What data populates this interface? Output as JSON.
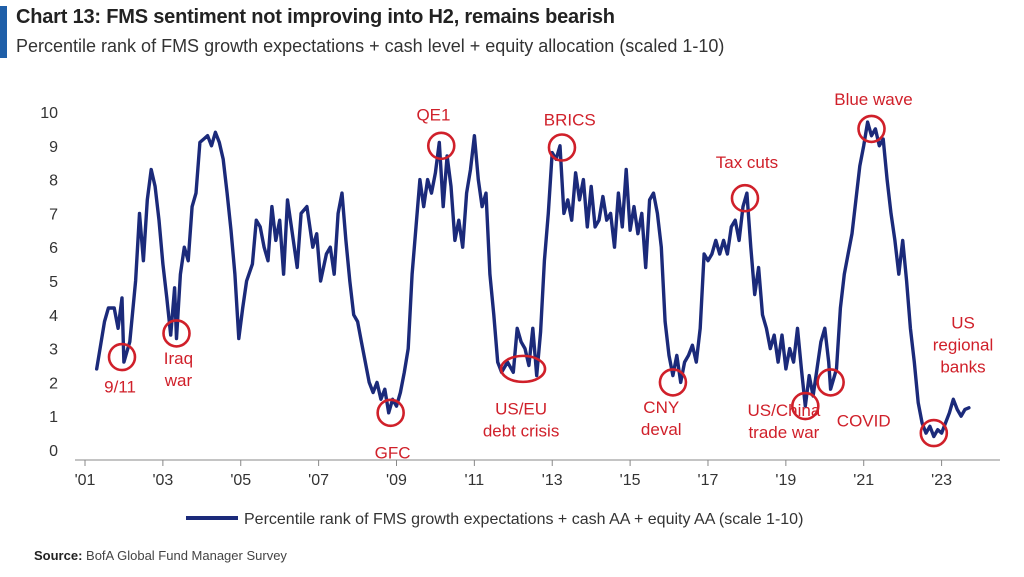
{
  "header": {
    "title": "Chart 13: FMS sentiment not improving into H2, remains bearish",
    "subtitle": "Percentile rank of FMS growth expectations + cash level + equity allocation (scaled 1-10)"
  },
  "source": {
    "label": "Source:",
    "text": "BofA Global Fund Manager Survey"
  },
  "colors": {
    "line": "#1b2a7a",
    "annotation": "#d0202a",
    "accent": "#1f5fa8"
  },
  "chart_data": {
    "type": "line",
    "xlim": [
      2001.0,
      2024.5
    ],
    "ylim": [
      0,
      10
    ],
    "y_ticks": [
      0,
      1,
      2,
      3,
      4,
      5,
      6,
      7,
      8,
      9,
      10
    ],
    "x_ticks": [
      {
        "value": 2001,
        "label": "'01"
      },
      {
        "value": 2003,
        "label": "'03"
      },
      {
        "value": 2005,
        "label": "'05"
      },
      {
        "value": 2007,
        "label": "'07"
      },
      {
        "value": 2009,
        "label": "'09"
      },
      {
        "value": 2011,
        "label": "'11"
      },
      {
        "value": 2013,
        "label": "'13"
      },
      {
        "value": 2015,
        "label": "'15"
      },
      {
        "value": 2017,
        "label": "'17"
      },
      {
        "value": 2019,
        "label": "'19"
      },
      {
        "value": 2021,
        "label": "'21"
      },
      {
        "value": 2023,
        "label": "'23"
      }
    ],
    "legend": "bottom-center",
    "series": [
      {
        "name": "Percentile rank of FMS growth expectations + cash AA + equity AA (scale 1-10)",
        "points": [
          [
            2001.3,
            2.4
          ],
          [
            2001.5,
            3.8
          ],
          [
            2001.6,
            4.2
          ],
          [
            2001.75,
            4.2
          ],
          [
            2001.85,
            3.6
          ],
          [
            2001.95,
            4.5
          ],
          [
            2002.0,
            2.6
          ],
          [
            2002.15,
            3.2
          ],
          [
            2002.3,
            5.0
          ],
          [
            2002.4,
            7.0
          ],
          [
            2002.5,
            5.6
          ],
          [
            2002.6,
            7.4
          ],
          [
            2002.7,
            8.3
          ],
          [
            2002.8,
            7.8
          ],
          [
            2002.9,
            6.8
          ],
          [
            2003.0,
            5.5
          ],
          [
            2003.1,
            4.5
          ],
          [
            2003.2,
            3.4
          ],
          [
            2003.3,
            4.8
          ],
          [
            2003.35,
            3.3
          ],
          [
            2003.45,
            5.2
          ],
          [
            2003.55,
            6.0
          ],
          [
            2003.65,
            5.6
          ],
          [
            2003.75,
            7.2
          ],
          [
            2003.85,
            7.6
          ],
          [
            2003.95,
            9.1
          ],
          [
            2004.05,
            9.2
          ],
          [
            2004.15,
            9.3
          ],
          [
            2004.25,
            9.0
          ],
          [
            2004.35,
            9.4
          ],
          [
            2004.45,
            9.1
          ],
          [
            2004.55,
            8.6
          ],
          [
            2004.65,
            7.6
          ],
          [
            2004.75,
            6.5
          ],
          [
            2004.85,
            5.2
          ],
          [
            2004.95,
            3.3
          ],
          [
            2005.05,
            4.2
          ],
          [
            2005.15,
            5.0
          ],
          [
            2005.3,
            5.5
          ],
          [
            2005.4,
            6.8
          ],
          [
            2005.5,
            6.6
          ],
          [
            2005.6,
            6.0
          ],
          [
            2005.7,
            5.6
          ],
          [
            2005.8,
            7.2
          ],
          [
            2005.9,
            6.2
          ],
          [
            2006.0,
            6.8
          ],
          [
            2006.1,
            5.2
          ],
          [
            2006.2,
            7.4
          ],
          [
            2006.3,
            6.6
          ],
          [
            2006.45,
            5.4
          ],
          [
            2006.55,
            7.0
          ],
          [
            2006.7,
            7.2
          ],
          [
            2006.85,
            6.0
          ],
          [
            2006.95,
            6.4
          ],
          [
            2007.05,
            5.0
          ],
          [
            2007.2,
            5.8
          ],
          [
            2007.3,
            6.0
          ],
          [
            2007.4,
            5.2
          ],
          [
            2007.5,
            7.0
          ],
          [
            2007.6,
            7.6
          ],
          [
            2007.7,
            6.2
          ],
          [
            2007.8,
            5.0
          ],
          [
            2007.9,
            4.0
          ],
          [
            2008.0,
            3.8
          ],
          [
            2008.1,
            3.2
          ],
          [
            2008.2,
            2.6
          ],
          [
            2008.3,
            2.0
          ],
          [
            2008.4,
            1.7
          ],
          [
            2008.5,
            2.0
          ],
          [
            2008.6,
            1.5
          ],
          [
            2008.7,
            1.8
          ],
          [
            2008.8,
            1.1
          ],
          [
            2008.9,
            1.5
          ],
          [
            2009.0,
            1.3
          ],
          [
            2009.1,
            1.7
          ],
          [
            2009.2,
            2.3
          ],
          [
            2009.3,
            3.0
          ],
          [
            2009.4,
            5.2
          ],
          [
            2009.5,
            6.6
          ],
          [
            2009.6,
            8.0
          ],
          [
            2009.7,
            7.2
          ],
          [
            2009.8,
            8.0
          ],
          [
            2009.9,
            7.6
          ],
          [
            2010.0,
            8.2
          ],
          [
            2010.1,
            9.1
          ],
          [
            2010.2,
            7.2
          ],
          [
            2010.3,
            8.7
          ],
          [
            2010.4,
            7.8
          ],
          [
            2010.5,
            6.2
          ],
          [
            2010.6,
            6.8
          ],
          [
            2010.7,
            6.0
          ],
          [
            2010.8,
            7.6
          ],
          [
            2010.9,
            8.3
          ],
          [
            2011.0,
            9.3
          ],
          [
            2011.1,
            8.0
          ],
          [
            2011.2,
            7.2
          ],
          [
            2011.3,
            7.6
          ],
          [
            2011.4,
            5.2
          ],
          [
            2011.5,
            4.0
          ],
          [
            2011.6,
            2.6
          ],
          [
            2011.7,
            2.3
          ],
          [
            2011.85,
            2.6
          ],
          [
            2012.0,
            2.3
          ],
          [
            2012.1,
            3.6
          ],
          [
            2012.2,
            3.2
          ],
          [
            2012.3,
            3.0
          ],
          [
            2012.4,
            2.5
          ],
          [
            2012.5,
            3.6
          ],
          [
            2012.6,
            2.2
          ],
          [
            2012.7,
            3.5
          ],
          [
            2012.8,
            5.6
          ],
          [
            2012.9,
            7.0
          ],
          [
            2013.0,
            8.8
          ],
          [
            2013.1,
            8.6
          ],
          [
            2013.2,
            9.0
          ],
          [
            2013.3,
            7.0
          ],
          [
            2013.4,
            7.4
          ],
          [
            2013.5,
            6.8
          ],
          [
            2013.6,
            8.2
          ],
          [
            2013.7,
            7.4
          ],
          [
            2013.8,
            8.0
          ],
          [
            2013.9,
            6.6
          ],
          [
            2014.0,
            7.8
          ],
          [
            2014.1,
            6.6
          ],
          [
            2014.2,
            6.8
          ],
          [
            2014.3,
            7.5
          ],
          [
            2014.4,
            6.8
          ],
          [
            2014.5,
            7.0
          ],
          [
            2014.6,
            6.0
          ],
          [
            2014.7,
            7.6
          ],
          [
            2014.8,
            6.6
          ],
          [
            2014.9,
            8.3
          ],
          [
            2015.0,
            6.5
          ],
          [
            2015.1,
            7.2
          ],
          [
            2015.2,
            6.4
          ],
          [
            2015.3,
            7.0
          ],
          [
            2015.4,
            5.4
          ],
          [
            2015.5,
            7.4
          ],
          [
            2015.6,
            7.6
          ],
          [
            2015.7,
            7.0
          ],
          [
            2015.8,
            6.0
          ],
          [
            2015.9,
            3.8
          ],
          [
            2016.0,
            2.8
          ],
          [
            2016.1,
            2.2
          ],
          [
            2016.2,
            2.8
          ],
          [
            2016.3,
            2.0
          ],
          [
            2016.4,
            2.6
          ],
          [
            2016.5,
            2.8
          ],
          [
            2016.6,
            3.1
          ],
          [
            2016.7,
            2.6
          ],
          [
            2016.8,
            3.6
          ],
          [
            2016.9,
            5.8
          ],
          [
            2017.0,
            5.6
          ],
          [
            2017.1,
            5.8
          ],
          [
            2017.2,
            6.2
          ],
          [
            2017.3,
            5.8
          ],
          [
            2017.4,
            6.2
          ],
          [
            2017.5,
            5.8
          ],
          [
            2017.6,
            6.6
          ],
          [
            2017.7,
            6.8
          ],
          [
            2017.8,
            6.2
          ],
          [
            2017.9,
            7.2
          ],
          [
            2018.0,
            7.6
          ],
          [
            2018.1,
            6.0
          ],
          [
            2018.2,
            4.6
          ],
          [
            2018.3,
            5.4
          ],
          [
            2018.4,
            4.0
          ],
          [
            2018.5,
            3.6
          ],
          [
            2018.6,
            3.0
          ],
          [
            2018.7,
            3.4
          ],
          [
            2018.8,
            2.6
          ],
          [
            2018.9,
            3.4
          ],
          [
            2019.0,
            2.4
          ],
          [
            2019.1,
            3.0
          ],
          [
            2019.2,
            2.6
          ],
          [
            2019.3,
            3.6
          ],
          [
            2019.4,
            2.4
          ],
          [
            2019.5,
            1.3
          ],
          [
            2019.6,
            2.2
          ],
          [
            2019.7,
            1.6
          ],
          [
            2019.8,
            2.4
          ],
          [
            2019.9,
            3.2
          ],
          [
            2020.0,
            3.6
          ],
          [
            2020.1,
            2.6
          ],
          [
            2020.15,
            1.8
          ],
          [
            2020.3,
            2.4
          ],
          [
            2020.4,
            4.2
          ],
          [
            2020.5,
            5.2
          ],
          [
            2020.6,
            5.8
          ],
          [
            2020.7,
            6.4
          ],
          [
            2020.8,
            7.4
          ],
          [
            2020.9,
            8.4
          ],
          [
            2021.0,
            9.0
          ],
          [
            2021.1,
            9.7
          ],
          [
            2021.2,
            9.3
          ],
          [
            2021.3,
            9.5
          ],
          [
            2021.4,
            9.0
          ],
          [
            2021.5,
            9.2
          ],
          [
            2021.6,
            8.0
          ],
          [
            2021.7,
            7.0
          ],
          [
            2021.8,
            6.2
          ],
          [
            2021.9,
            5.2
          ],
          [
            2022.0,
            6.2
          ],
          [
            2022.1,
            5.0
          ],
          [
            2022.2,
            3.6
          ],
          [
            2022.3,
            2.6
          ],
          [
            2022.4,
            1.4
          ],
          [
            2022.5,
            0.8
          ],
          [
            2022.6,
            0.5
          ],
          [
            2022.7,
            0.7
          ],
          [
            2022.8,
            0.4
          ],
          [
            2022.9,
            0.6
          ],
          [
            2023.0,
            0.5
          ],
          [
            2023.1,
            0.8
          ],
          [
            2023.2,
            1.1
          ],
          [
            2023.3,
            1.5
          ],
          [
            2023.4,
            1.2
          ],
          [
            2023.5,
            1.0
          ],
          [
            2023.6,
            1.2
          ],
          [
            2023.7,
            1.25
          ]
        ]
      }
    ],
    "annotations": [
      {
        "label": "9/11",
        "x": 2001.95,
        "y": 2.75,
        "lines": [
          "9/11"
        ],
        "text_x": 2001.9,
        "text_y": 1.7
      },
      {
        "label": "Iraq war",
        "x": 2003.35,
        "y": 3.45,
        "lines": [
          "Iraq",
          "war"
        ],
        "text_x": 2003.4,
        "text_y": 2.55
      },
      {
        "label": "GFC",
        "x": 2008.85,
        "y": 1.1,
        "lines": [
          "GFC"
        ],
        "text_x": 2008.9,
        "text_y": -0.25
      },
      {
        "label": "QE1",
        "x": 2010.15,
        "y": 9.0,
        "lines": [
          "QE1"
        ],
        "text_x": 2009.95,
        "text_y": 9.75
      },
      {
        "label": "US/EU debt crisis",
        "x": 2012.25,
        "y": 2.4,
        "lines": [
          "US/EU",
          "debt crisis"
        ],
        "text_x": 2012.2,
        "text_y": 1.05
      },
      {
        "label": "BRICS",
        "x": 2013.25,
        "y": 8.95,
        "lines": [
          "BRICS"
        ],
        "text_x": 2013.45,
        "text_y": 9.6
      },
      {
        "label": "CNY deval",
        "x": 2016.1,
        "y": 2.0,
        "lines": [
          "CNY",
          "deval"
        ],
        "text_x": 2015.8,
        "text_y": 1.1
      },
      {
        "label": "Tax cuts",
        "x": 2017.95,
        "y": 7.45,
        "lines": [
          "Tax cuts"
        ],
        "text_x": 2018.0,
        "text_y": 8.35
      },
      {
        "label": "US/China trade war",
        "x": 2019.5,
        "y": 1.3,
        "lines": [
          "US/China",
          "trade war"
        ],
        "text_x": 2018.95,
        "text_y": 1.0
      },
      {
        "label": "COVID",
        "x": 2020.15,
        "y": 2.0,
        "lines": [
          "COVID"
        ],
        "text_x": 2021.0,
        "text_y": 0.7
      },
      {
        "label": "Blue wave",
        "x": 2021.2,
        "y": 9.5,
        "lines": [
          "Blue wave"
        ],
        "text_x": 2021.25,
        "text_y": 10.2
      },
      {
        "label": "US regional banks",
        "x": 2022.8,
        "y": 0.5,
        "lines": [
          "US",
          "regional",
          "banks"
        ],
        "text_x": 2023.55,
        "text_y": 3.6
      }
    ]
  }
}
